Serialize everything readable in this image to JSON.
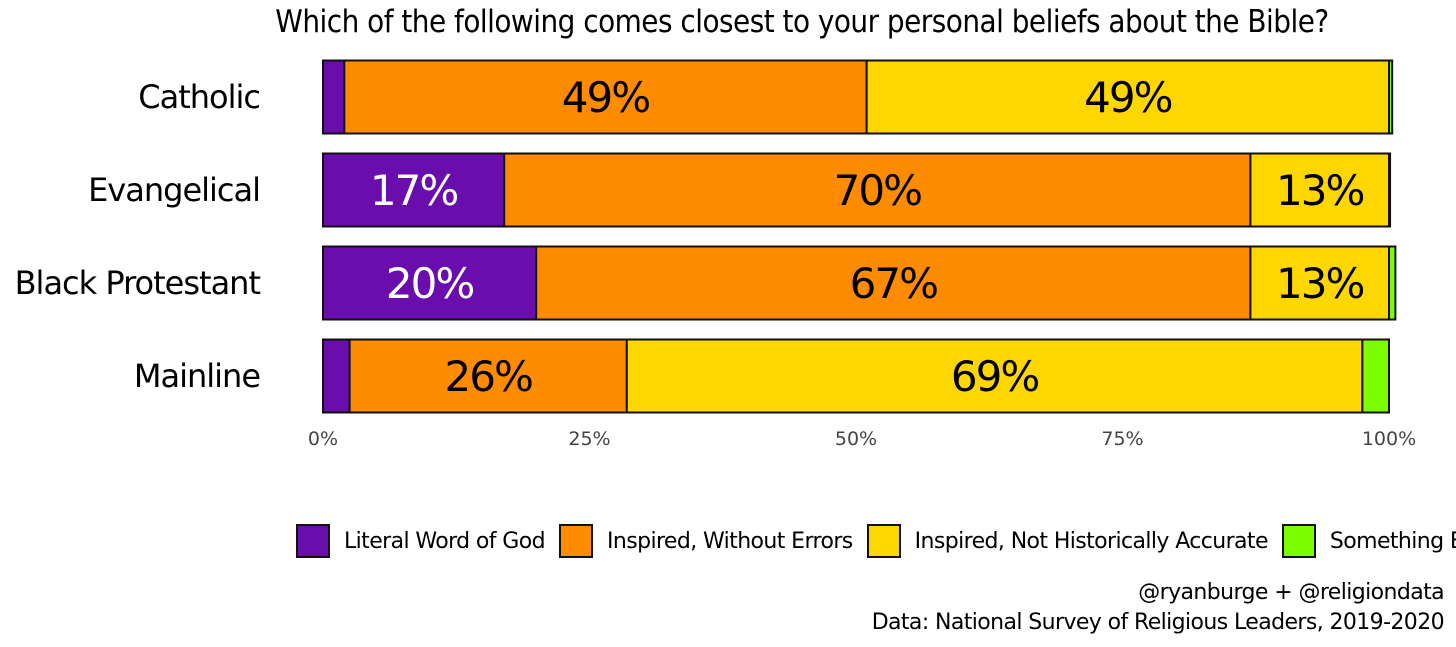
{
  "chart_data": {
    "type": "bar",
    "orientation": "horizontal",
    "stacked": true,
    "title": "Which of the following comes closest to your personal beliefs about the Bible?",
    "categories": [
      "Catholic",
      "Evangelical",
      "Black Protestant",
      "Mainline"
    ],
    "series": [
      {
        "name": "Literal Word of God",
        "color": "#6A0DAD",
        "values": [
          2,
          17,
          20,
          2.5
        ],
        "labels": [
          "",
          "17%",
          "20%",
          ""
        ],
        "label_color": "#ffffff"
      },
      {
        "name": "Inspired, Without Errors",
        "color": "#FF8C00",
        "values": [
          49,
          70,
          67,
          26
        ],
        "labels": [
          "49%",
          "70%",
          "67%",
          "26%"
        ],
        "label_color": "#000000"
      },
      {
        "name": "Inspired, Not Historically Accurate",
        "color": "#FFD700",
        "values": [
          49,
          13,
          13,
          69
        ],
        "labels": [
          "49%",
          "13%",
          "13%",
          "69%"
        ],
        "label_color": "#000000"
      },
      {
        "name": "Something Else",
        "color": "#7CFC00",
        "values": [
          0.3,
          0.1,
          0.6,
          2.5
        ],
        "labels": [
          "",
          "",
          "",
          ""
        ],
        "label_color": "#000000"
      }
    ],
    "xlim": [
      0,
      100
    ],
    "x_ticks": [
      "0%",
      "25%",
      "50%",
      "75%",
      "100%"
    ],
    "grid": false,
    "legend_position": "bottom"
  },
  "credits": {
    "line1": "@ryanburge + @religiondata",
    "line2": "Data: National Survey of Religious Leaders, 2019-2020"
  }
}
